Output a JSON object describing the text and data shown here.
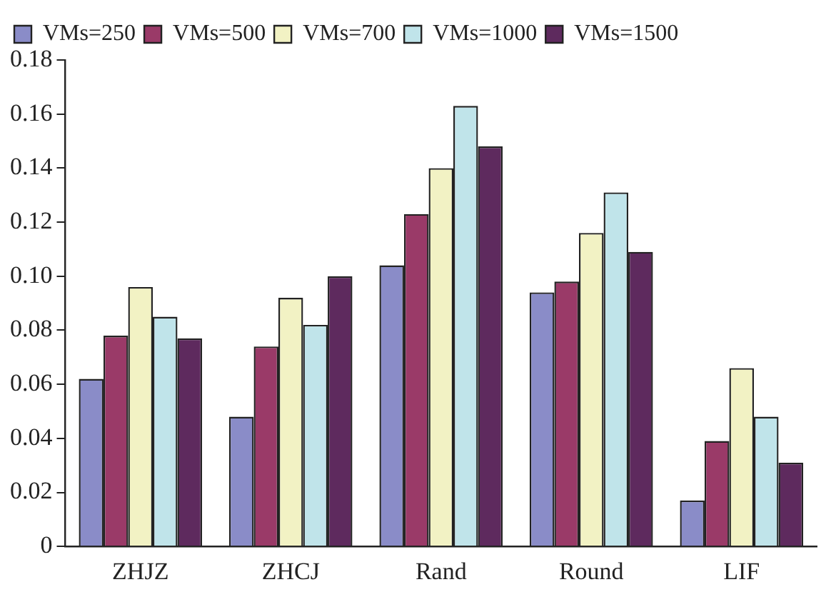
{
  "chart_data": {
    "type": "bar",
    "categories": [
      "ZHJZ",
      "ZHCJ",
      "Rand",
      "Round",
      "LIF"
    ],
    "series": [
      {
        "name": "VMs=250",
        "color": "#8a8cc8",
        "values": [
          0.062,
          0.048,
          0.104,
          0.094,
          0.017
        ]
      },
      {
        "name": "VMs=500",
        "color": "#9a3a68",
        "values": [
          0.078,
          0.074,
          0.123,
          0.098,
          0.039
        ]
      },
      {
        "name": "VMs=700",
        "color": "#f2f2c4",
        "values": [
          0.096,
          0.092,
          0.14,
          0.116,
          0.066
        ]
      },
      {
        "name": "VMs=1000",
        "color": "#c0e4ea",
        "values": [
          0.085,
          0.082,
          0.163,
          0.131,
          0.048
        ]
      },
      {
        "name": "VMs=1500",
        "color": "#5e2a5e",
        "values": [
          0.077,
          0.1,
          0.148,
          0.109,
          0.031
        ]
      }
    ],
    "ylim": [
      0,
      0.18
    ],
    "yticks": [
      0,
      {
        "value": 0.02,
        "label": "0.02"
      },
      {
        "value": 0.04,
        "label": "0.04"
      },
      {
        "value": 0.06,
        "label": "0.06"
      },
      {
        "value": 0.08,
        "label": "0.08"
      },
      {
        "value": 0.1,
        "label": "0.10"
      },
      {
        "value": 0.12,
        "label": "0.12"
      },
      {
        "value": 0.14,
        "label": "0.14"
      },
      {
        "value": 0.16,
        "label": "0.16"
      },
      {
        "value": 0.18,
        "label": "0.18"
      }
    ],
    "grid": false,
    "legend": "top left"
  }
}
